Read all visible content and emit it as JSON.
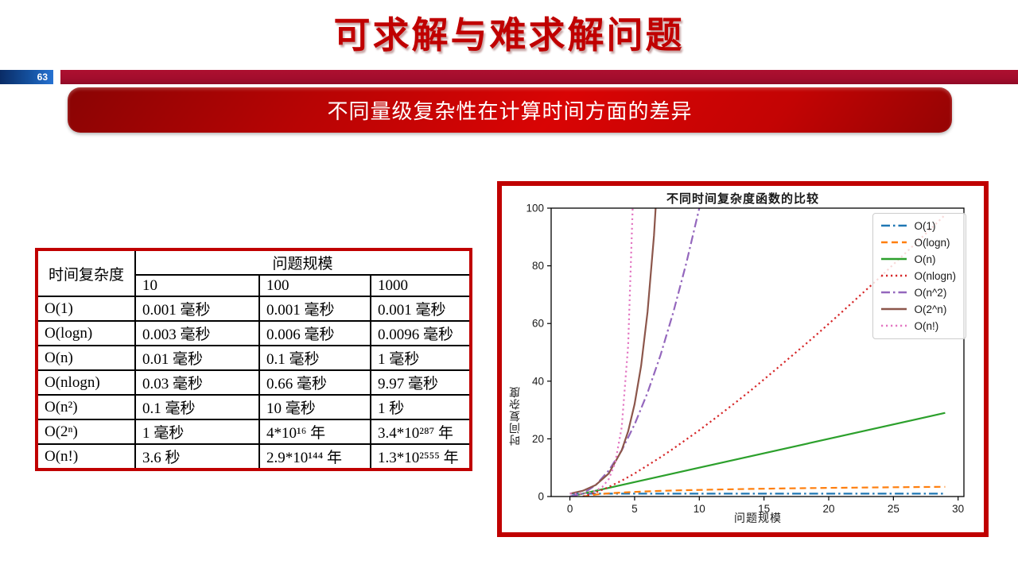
{
  "page": {
    "number": "63"
  },
  "header": {
    "title": "可求解与难求解问题"
  },
  "banner": {
    "text": "不同量级复杂性在计算时间方面的差异"
  },
  "colors": {
    "accent_red": "#c00000",
    "bar_crimson": "#a30d2d",
    "badge_blue": "#14509e",
    "banner_red": "#d90404"
  },
  "table": {
    "corner_header": "时间复杂度",
    "group_header": "问题规模",
    "size_headers": [
      "10",
      "100",
      "1000"
    ],
    "rows": [
      {
        "complexity": "O(1)",
        "values": [
          "0.001 毫秒",
          "0.001 毫秒",
          "0.001 毫秒"
        ]
      },
      {
        "complexity": "O(logn)",
        "values": [
          "0.003 毫秒",
          "0.006 毫秒",
          "0.0096 毫秒"
        ]
      },
      {
        "complexity": "O(n)",
        "values": [
          "0.01 毫秒",
          "0.1 毫秒",
          "1 毫秒"
        ]
      },
      {
        "complexity": "O(nlogn)",
        "values": [
          "0.03 毫秒",
          "0.66 毫秒",
          "9.97 毫秒"
        ]
      },
      {
        "complexity": "O(n²)",
        "values": [
          "0.1 毫秒",
          "10 毫秒",
          "1 秒"
        ]
      },
      {
        "complexity": "O(2ⁿ)",
        "values": [
          "1 毫秒",
          "4*10¹⁶ 年",
          "3.4*10²⁸⁷ 年"
        ]
      },
      {
        "complexity": "O(n!)",
        "values": [
          "3.6 秒",
          "2.9*10¹⁴⁴ 年",
          "1.3*10²⁵⁵⁵ 年"
        ]
      }
    ]
  },
  "chart_data": {
    "type": "line",
    "title": "不同时间复杂度函数的比较",
    "xlabel": "问题规模",
    "ylabel": "时间复杂度",
    "xlim": [
      -1.45,
      30.45
    ],
    "ylim": [
      0,
      100
    ],
    "xticks": [
      0,
      5,
      10,
      15,
      20,
      25,
      30
    ],
    "yticks": [
      0,
      20,
      40,
      60,
      80,
      100
    ],
    "grid": false,
    "legend_position": "upper right",
    "series": [
      {
        "name": "O(1)",
        "color": "#1f77b4",
        "style": "dashdot",
        "x": [
          0,
          29
        ],
        "y": [
          1,
          1
        ]
      },
      {
        "name": "O(logn)",
        "color": "#ff7f0e",
        "style": "dashed",
        "x": [
          1,
          2,
          3,
          4,
          5,
          6,
          7,
          8,
          9,
          10,
          11,
          12,
          13,
          14,
          15,
          16,
          17,
          18,
          19,
          20,
          21,
          22,
          23,
          24,
          25,
          26,
          27,
          28,
          29
        ],
        "y": [
          0,
          0.69,
          1.1,
          1.39,
          1.61,
          1.79,
          1.95,
          2.08,
          2.2,
          2.3,
          2.4,
          2.48,
          2.56,
          2.64,
          2.71,
          2.77,
          2.83,
          2.89,
          2.94,
          3.0,
          3.04,
          3.09,
          3.14,
          3.18,
          3.22,
          3.26,
          3.3,
          3.33,
          3.37
        ]
      },
      {
        "name": "O(n)",
        "color": "#2ca02c",
        "style": "solid",
        "x": [
          0,
          29
        ],
        "y": [
          0,
          29
        ]
      },
      {
        "name": "O(nlogn)",
        "color": "#d62728",
        "style": "dotted",
        "x": [
          1,
          2,
          3,
          4,
          5,
          6,
          7,
          8,
          9,
          10,
          11,
          12,
          13,
          14,
          15,
          16,
          17,
          18,
          19,
          20,
          21,
          22,
          23,
          24,
          25,
          26,
          27,
          28,
          29
        ],
        "y": [
          0,
          1.4,
          3.3,
          5.5,
          8.0,
          10.8,
          13.6,
          16.6,
          19.8,
          23.0,
          26.4,
          29.8,
          33.3,
          36.9,
          40.6,
          44.4,
          48.2,
          52.0,
          55.9,
          59.9,
          63.9,
          68.0,
          72.1,
          76.2,
          80.5,
          84.7,
          89.0,
          93.3,
          97.7
        ]
      },
      {
        "name": "O(n^2)",
        "color": "#9467bd",
        "style": "dashdot",
        "x": [
          0,
          1,
          2,
          3,
          4,
          5,
          6,
          7,
          8,
          9,
          10,
          11
        ],
        "y": [
          0,
          1,
          4,
          9,
          16,
          25,
          36,
          49,
          64,
          81,
          100,
          121
        ]
      },
      {
        "name": "O(2^n)",
        "color": "#8c564b",
        "style": "solid",
        "x": [
          0,
          1,
          2,
          3,
          4,
          4.5,
          5,
          5.5,
          6,
          6.5,
          7
        ],
        "y": [
          1,
          2,
          4,
          8,
          16,
          22.6,
          32,
          45.3,
          64,
          90.5,
          128
        ]
      },
      {
        "name": "O(n!)",
        "color": "#e377c2",
        "style": "dotted",
        "x": [
          0,
          1,
          1.5,
          2,
          2.5,
          3,
          3.5,
          4,
          4.5,
          5
        ],
        "y": [
          1,
          1,
          1.33,
          2,
          3.32,
          6,
          11.63,
          24,
          52.34,
          120
        ]
      }
    ]
  }
}
